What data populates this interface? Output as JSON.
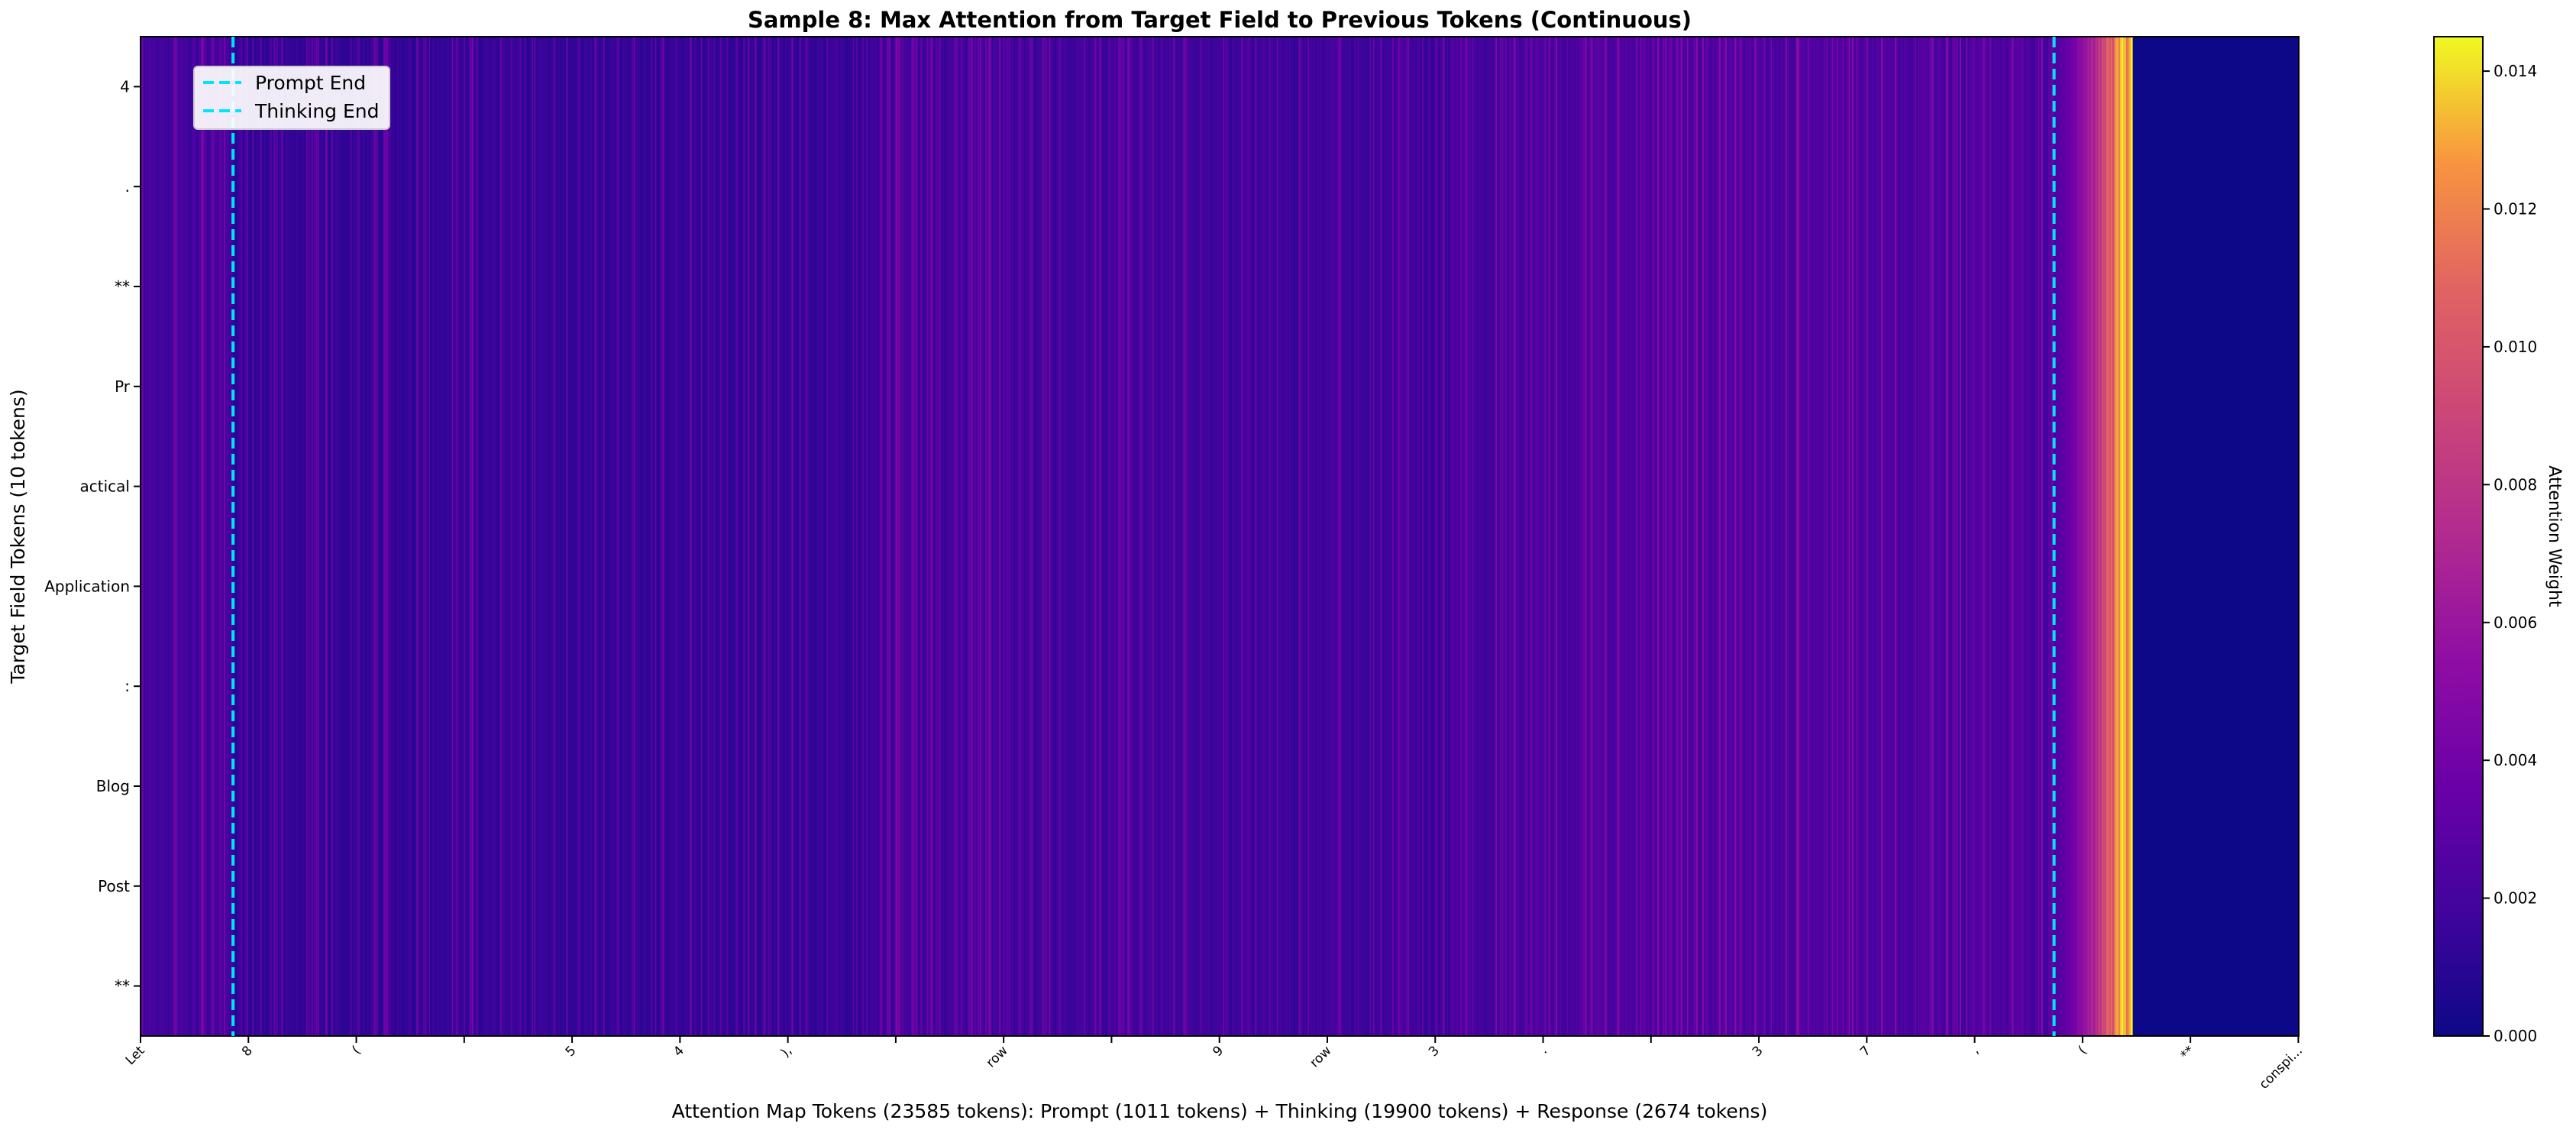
{
  "chart_data": {
    "type": "heatmap",
    "title": "Sample 8: Max Attention from Target Field to Previous Tokens (Continuous)",
    "xlabel": "Attention Map Tokens (23585 tokens): Prompt (1011 tokens) + Thinking (19900 tokens) + Response (2674 tokens)",
    "ylabel": "Target Field Tokens (10 tokens)",
    "colormap": "plasma",
    "total_tokens": 23585,
    "segments": [
      {
        "name": "Prompt",
        "tokens": 1011
      },
      {
        "name": "Thinking",
        "tokens": 19900
      },
      {
        "name": "Response",
        "tokens": 2674
      }
    ],
    "y_tokens": [
      "4",
      ".",
      "**",
      "Pr",
      "actical",
      "Application",
      ":",
      "Blog",
      "Post",
      "**"
    ],
    "x_ticks": [
      {
        "pos": 0,
        "label": "Let"
      },
      {
        "pos": 1179,
        "label": "8"
      },
      {
        "pos": 2358,
        "label": "("
      },
      {
        "pos": 3537,
        "label": ""
      },
      {
        "pos": 4716,
        "label": "5"
      },
      {
        "pos": 5895,
        "label": "4"
      },
      {
        "pos": 7074,
        "label": "),"
      },
      {
        "pos": 8253,
        "label": ""
      },
      {
        "pos": 9432,
        "label": "row"
      },
      {
        "pos": 10611,
        "label": ""
      },
      {
        "pos": 11790,
        "label": "9"
      },
      {
        "pos": 12969,
        "label": "row"
      },
      {
        "pos": 14148,
        "label": "3"
      },
      {
        "pos": 15327,
        "label": "."
      },
      {
        "pos": 16506,
        "label": ""
      },
      {
        "pos": 17685,
        "label": "3"
      },
      {
        "pos": 18864,
        "label": "7"
      },
      {
        "pos": 20043,
        "label": ","
      },
      {
        "pos": 21222,
        "label": "("
      },
      {
        "pos": 22401,
        "label": "**"
      },
      {
        "pos": 23580,
        "label": "conspi..."
      }
    ],
    "vlines": [
      {
        "x": 1011,
        "label": "Prompt End",
        "color": "#00e5ff"
      },
      {
        "x": 20911,
        "label": "Thinking End",
        "color": "#00e5ff"
      }
    ],
    "legend_position": "upper-left",
    "colorbar": {
      "label": "Attention Weight",
      "min": 0.0,
      "max": 0.0145,
      "ticks": [
        "0.000",
        "0.002",
        "0.004",
        "0.006",
        "0.008",
        "0.010",
        "0.012",
        "0.014"
      ]
    },
    "attention_profile": {
      "prompt_mean": 0.0021,
      "thinking_early_mean": 0.0014,
      "thinking_mid_mean": 0.0018,
      "thinking_late_mean": 0.0024,
      "response_start_peak": 0.0145,
      "response_attended_until_token": 21760,
      "response_tail_value": 0.0
    }
  }
}
